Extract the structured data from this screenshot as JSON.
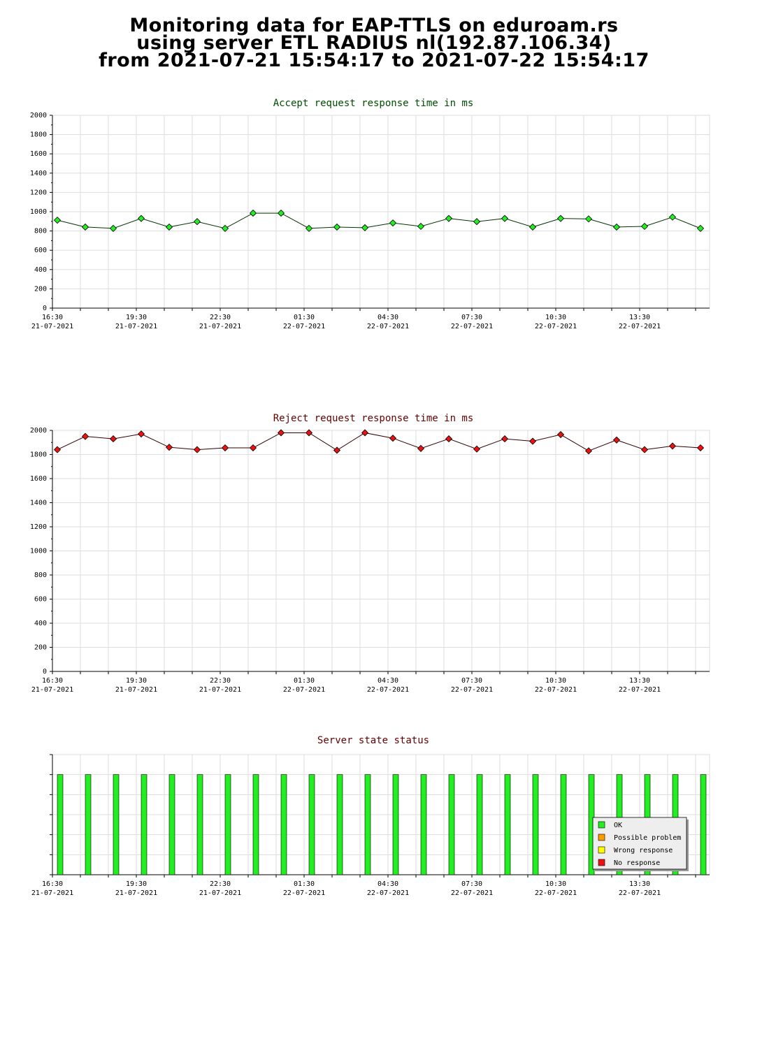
{
  "page": {
    "title_lines": [
      "Monitoring data for EAP-TTLS on eduroam.rs",
      "using server ETL RADIUS nl(192.87.106.34)",
      "from 2021-07-21 15:54:17 to 2021-07-22 15:54:17"
    ]
  },
  "chart_data": [
    {
      "type": "line",
      "title": "Accept request response time in ms",
      "title_color": "#004d00",
      "marker_color": "#22ee22",
      "line_color": "#003300",
      "ylim": [
        0,
        2000
      ],
      "ytick_step": 200,
      "yticks": [
        "0",
        "200",
        "400",
        "600",
        "800",
        "1000",
        "1200",
        "1400",
        "1600",
        "1800",
        "2000"
      ],
      "xtick_labels": [
        [
          "16:30",
          "21-07-2021"
        ],
        [
          "19:30",
          "21-07-2021"
        ],
        [
          "22:30",
          "21-07-2021"
        ],
        [
          "01:30",
          "22-07-2021"
        ],
        [
          "04:30",
          "22-07-2021"
        ],
        [
          "07:30",
          "22-07-2021"
        ],
        [
          "10:30",
          "22-07-2021"
        ],
        [
          "13:30",
          "22-07-2021"
        ]
      ],
      "grid": true,
      "series": [
        {
          "values": [
            912,
            841,
            827,
            930,
            841,
            897,
            827,
            985,
            985,
            827,
            841,
            834,
            883,
            848,
            930,
            897,
            930,
            841,
            930,
            925,
            841,
            848,
            944,
            827
          ]
        }
      ]
    },
    {
      "type": "line",
      "title": "Reject request response time in ms",
      "title_color": "#660000",
      "marker_color": "#ee1111",
      "line_color": "#330000",
      "ylim": [
        0,
        2000
      ],
      "ytick_step": 200,
      "yticks": [
        "0",
        "200",
        "400",
        "600",
        "800",
        "1000",
        "1200",
        "1400",
        "1600",
        "1800",
        "2000"
      ],
      "xtick_labels": [
        [
          "16:30",
          "21-07-2021"
        ],
        [
          "19:30",
          "21-07-2021"
        ],
        [
          "22:30",
          "21-07-2021"
        ],
        [
          "01:30",
          "22-07-2021"
        ],
        [
          "04:30",
          "22-07-2021"
        ],
        [
          "07:30",
          "22-07-2021"
        ],
        [
          "10:30",
          "22-07-2021"
        ],
        [
          "13:30",
          "22-07-2021"
        ]
      ],
      "grid": true,
      "series": [
        {
          "values": [
            1840,
            1950,
            1930,
            1970,
            1860,
            1840,
            1855,
            1855,
            1980,
            1980,
            1835,
            1980,
            1935,
            1850,
            1930,
            1845,
            1930,
            1910,
            1965,
            1830,
            1920,
            1840,
            1870,
            1855
          ]
        }
      ]
    },
    {
      "type": "bar",
      "title": "Server state status",
      "title_color": "#660000",
      "bar_color": "#22ee22",
      "ylim": [
        0,
        1.2
      ],
      "xtick_labels": [
        [
          "16:30",
          "21-07-2021"
        ],
        [
          "19:30",
          "21-07-2021"
        ],
        [
          "22:30",
          "21-07-2021"
        ],
        [
          "01:30",
          "22-07-2021"
        ],
        [
          "04:30",
          "22-07-2021"
        ],
        [
          "07:30",
          "22-07-2021"
        ],
        [
          "10:30",
          "22-07-2021"
        ],
        [
          "13:30",
          "22-07-2021"
        ]
      ],
      "grid": true,
      "series": [
        {
          "values": [
            1,
            1,
            1,
            1,
            1,
            1,
            1,
            1,
            1,
            1,
            1,
            1,
            1,
            1,
            1,
            1,
            1,
            1,
            1,
            1,
            1,
            1,
            1,
            1
          ]
        }
      ],
      "legend": {
        "placement": "bottom-right",
        "entries": [
          {
            "label": "OK",
            "color": "#22ee22"
          },
          {
            "label": "Possible problem",
            "color": "#ff9900"
          },
          {
            "label": "Wrong response",
            "color": "#ffff00"
          },
          {
            "label": "No response",
            "color": "#ee1111"
          }
        ]
      }
    }
  ]
}
